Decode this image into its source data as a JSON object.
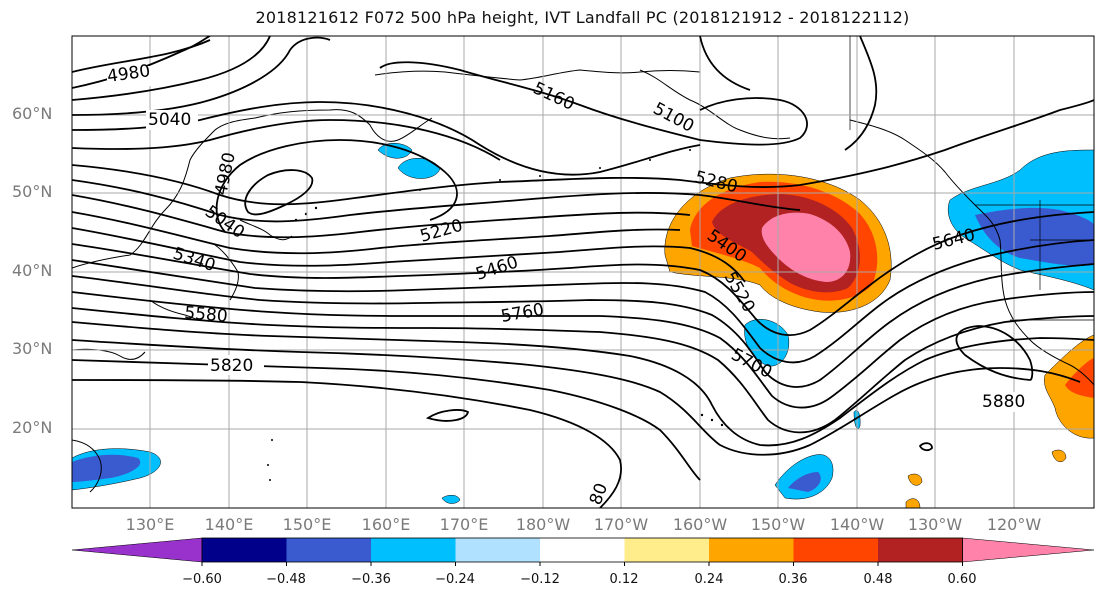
{
  "title": "2018121612 F072 500 hPa height, IVT Landfall PC (2018121912 - 2018122112)",
  "lat_labels": [
    "60°N",
    "50°N",
    "40°N",
    "30°N",
    "20°N"
  ],
  "lon_labels": [
    "130°E",
    "140°E",
    "150°E",
    "160°E",
    "170°E",
    "180°W",
    "170°W",
    "160°W",
    "150°W",
    "140°W",
    "130°W",
    "120°W"
  ],
  "contour_labels": [
    "4980",
    "5040",
    "4980",
    "5040",
    "5160",
    "5100",
    "5340",
    "5220",
    "5280",
    "5400",
    "5460",
    "5520",
    "5580",
    "5640",
    "5760",
    "5700",
    "5820",
    "5880",
    "80"
  ],
  "colorbar": {
    "ticks": [
      "−0.60",
      "−0.48",
      "−0.36",
      "−0.24",
      "−0.12",
      "0.12",
      "0.24",
      "0.36",
      "0.48",
      "0.60"
    ],
    "colors": [
      "#9932cc",
      "#00008b",
      "#3a5bd0",
      "#00bfff",
      "#b0e2ff",
      "#ffffff",
      "#ffec8b",
      "#ffa500",
      "#ff4500",
      "#b22222",
      "#ff82ab"
    ]
  }
}
